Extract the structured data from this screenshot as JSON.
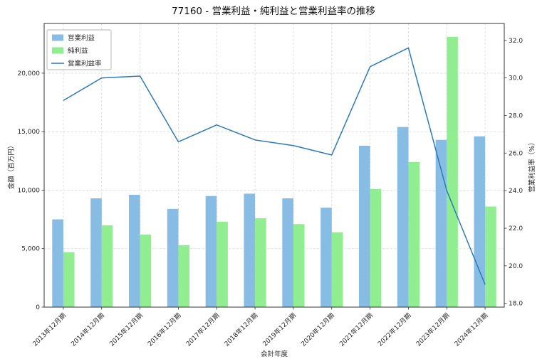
{
  "figure": {
    "background": "#ffffff"
  },
  "chart_data": {
    "type": "bar",
    "combo": "bar+line",
    "title": "77160 - 営業利益・純利益と営業利益率の推移",
    "xlabel": "会計年度",
    "ylabel_left": "金額（百万円）",
    "ylabel_right": "営業利益率（%）",
    "categories": [
      "2013年12月期",
      "2014年12月期",
      "2015年12月期",
      "2016年12月期",
      "2017年12月期",
      "2018年12月期",
      "2019年12月期",
      "2020年12月期",
      "2021年12月期",
      "2022年12月期",
      "2023年12月期",
      "2024年12月期"
    ],
    "series": [
      {
        "name": "営業利益",
        "type": "bar",
        "axis": "left",
        "color": "#87bce5",
        "values": [
          7500,
          9300,
          9600,
          8400,
          9500,
          9700,
          9300,
          8500,
          13800,
          15400,
          14300,
          14600
        ]
      },
      {
        "name": "純利益",
        "type": "bar",
        "axis": "left",
        "color": "#90EE90",
        "values": [
          4700,
          7000,
          6200,
          5300,
          7300,
          7600,
          7100,
          6400,
          10100,
          12400,
          23100,
          8600
        ]
      },
      {
        "name": "営業利益率",
        "type": "line",
        "axis": "right",
        "color": "#2e7ab8",
        "values": [
          28.8,
          30.0,
          30.1,
          26.6,
          27.5,
          26.7,
          26.4,
          25.9,
          30.6,
          31.6,
          24.0,
          19.0
        ]
      }
    ],
    "left_axis": {
      "min": 0,
      "max": 24250,
      "ticks": [
        0,
        5000,
        10000,
        15000,
        20000
      ]
    },
    "right_axis": {
      "min": 17.8,
      "max": 32.9,
      "ticks": [
        18.0,
        20.0,
        22.0,
        24.0,
        26.0,
        28.0,
        30.0,
        32.0
      ]
    },
    "grid": true,
    "legend_position": "upper-left"
  }
}
